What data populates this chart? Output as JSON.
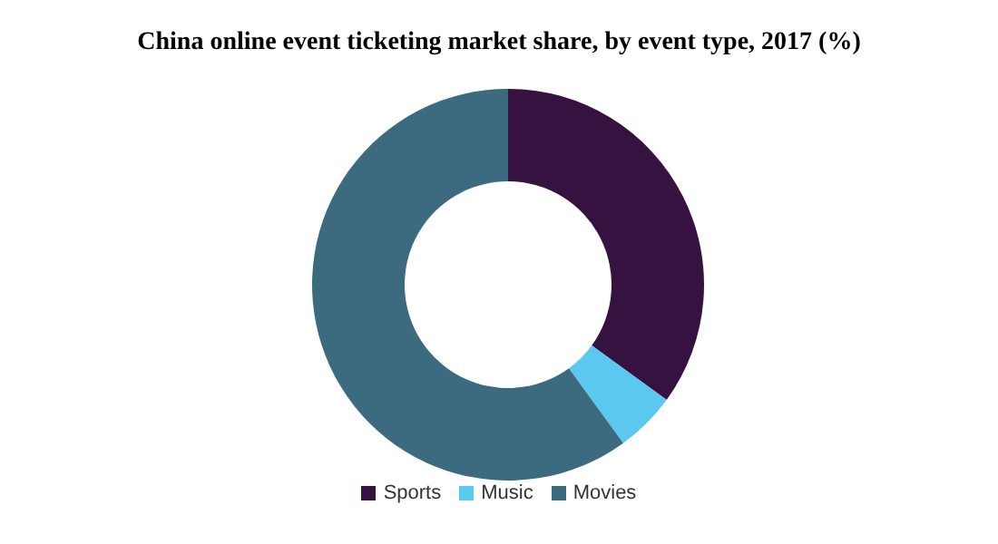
{
  "chart_data": {
    "type": "donut",
    "title": "China online event ticketing market share, by event type, 2017 (%)",
    "categories": [
      "Sports",
      "Music",
      "Movies"
    ],
    "values": [
      35,
      5,
      60
    ],
    "colors": [
      "#35123f",
      "#5bc8f0",
      "#3c6b80"
    ],
    "legend": "bottom"
  }
}
